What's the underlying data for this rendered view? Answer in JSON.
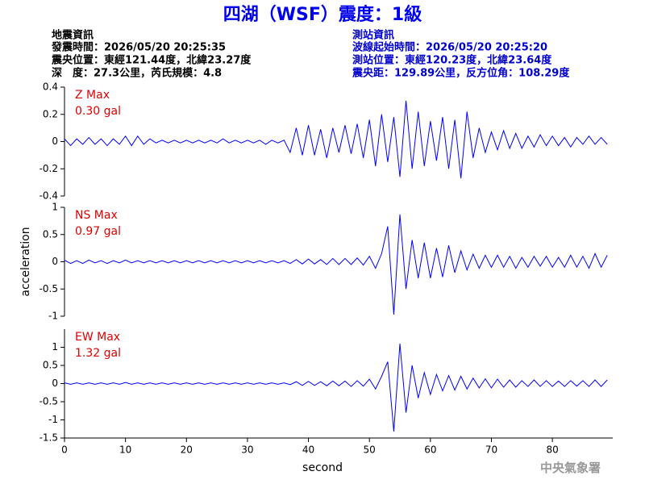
{
  "header": {
    "title": "四湖（WSF）震度：1級",
    "event": [
      "地震資訊",
      "發震時間：2026/05/20 20:25:35",
      "震央位置：東經121.44度，北緯23.27度",
      "深　度：27.3公里，芮氏規模：4.8"
    ],
    "station": [
      "測站資訊",
      "波線起始時間：2026/05/20 20:25:20",
      "測站位置：東經120.23度，北緯23.64度",
      "震央距：129.89公里，反方位角：108.29度"
    ]
  },
  "footer": "中央氣象署",
  "chart_data": [
    {
      "type": "line",
      "color": "#0000ff",
      "annotations": [
        "Z Max",
        "0.30 gal"
      ],
      "xlim": [
        0,
        89.9
      ],
      "ylim": [
        -0.4,
        0.4
      ],
      "yticks": [
        -0.4,
        -0.2,
        0,
        0.2,
        0.4
      ],
      "x": [
        0,
        1,
        2,
        3,
        4,
        5,
        6,
        7,
        8,
        9,
        10,
        11,
        12,
        13,
        14,
        15,
        16,
        17,
        18,
        19,
        20,
        21,
        22,
        23,
        24,
        25,
        26,
        27,
        28,
        29,
        30,
        31,
        32,
        33,
        34,
        35,
        36,
        37,
        38,
        39,
        40,
        41,
        42,
        43,
        44,
        45,
        46,
        47,
        48,
        49,
        50,
        51,
        52,
        53,
        54,
        55,
        56,
        57,
        58,
        59,
        60,
        61,
        62,
        63,
        64,
        65,
        66,
        67,
        68,
        69,
        70,
        71,
        72,
        73,
        74,
        75,
        76,
        77,
        78,
        79,
        80,
        81,
        82,
        83,
        84,
        85,
        86,
        87,
        88,
        89
      ],
      "values": [
        0.02,
        -0.03,
        0.02,
        -0.02,
        0.03,
        -0.02,
        0.02,
        -0.03,
        0.02,
        -0.02,
        0.04,
        -0.03,
        0.04,
        -0.02,
        0.02,
        -0.01,
        0.01,
        -0.01,
        0.01,
        -0.01,
        0.01,
        -0.01,
        0.01,
        -0.01,
        0.01,
        -0.01,
        0.02,
        -0.01,
        0.01,
        -0.01,
        0.01,
        -0.01,
        0.01,
        -0.02,
        0.01,
        -0.01,
        0.01,
        -0.08,
        0.1,
        -0.1,
        0.12,
        -0.1,
        0.09,
        -0.12,
        0.1,
        -0.08,
        0.12,
        -0.09,
        0.13,
        -0.12,
        0.16,
        -0.18,
        0.2,
        -0.15,
        0.18,
        -0.26,
        0.3,
        -0.2,
        0.22,
        -0.18,
        0.15,
        -0.14,
        0.18,
        -0.2,
        0.16,
        -0.27,
        0.22,
        -0.12,
        0.1,
        -0.08,
        0.07,
        -0.06,
        0.08,
        -0.05,
        0.06,
        -0.05,
        0.04,
        -0.04,
        0.05,
        -0.03,
        0.04,
        -0.03,
        0.03,
        -0.04,
        0.03,
        -0.02,
        0.04,
        -0.02,
        0.03,
        -0.02
      ]
    },
    {
      "type": "line",
      "color": "#0000ff",
      "annotations": [
        "NS Max",
        "0.97 gal"
      ],
      "y_label": "acceleration",
      "xlim": [
        0,
        89.9
      ],
      "ylim": [
        -1,
        1
      ],
      "yticks": [
        -1,
        -0.5,
        0,
        0.5,
        1
      ],
      "x": [
        0,
        1,
        2,
        3,
        4,
        5,
        6,
        7,
        8,
        9,
        10,
        11,
        12,
        13,
        14,
        15,
        16,
        17,
        18,
        19,
        20,
        21,
        22,
        23,
        24,
        25,
        26,
        27,
        28,
        29,
        30,
        31,
        32,
        33,
        34,
        35,
        36,
        37,
        38,
        39,
        40,
        41,
        42,
        43,
        44,
        45,
        46,
        47,
        48,
        49,
        50,
        51,
        52,
        53,
        54,
        55,
        56,
        57,
        58,
        59,
        60,
        61,
        62,
        63,
        64,
        65,
        66,
        67,
        68,
        69,
        70,
        71,
        72,
        73,
        74,
        75,
        76,
        77,
        78,
        79,
        80,
        81,
        82,
        83,
        84,
        85,
        86,
        87,
        88,
        89
      ],
      "values": [
        0.03,
        -0.03,
        0.02,
        -0.03,
        0.03,
        -0.02,
        0.02,
        -0.03,
        0.02,
        -0.02,
        0.03,
        -0.02,
        0.02,
        -0.02,
        0.02,
        -0.02,
        0.02,
        -0.02,
        0.02,
        -0.02,
        0.02,
        -0.02,
        0.02,
        -0.02,
        0.02,
        -0.02,
        0.02,
        -0.02,
        0.02,
        -0.02,
        0.02,
        -0.02,
        0.02,
        -0.02,
        0.02,
        -0.02,
        0.02,
        -0.03,
        0.04,
        -0.04,
        0.05,
        -0.04,
        0.04,
        -0.05,
        0.06,
        -0.05,
        0.06,
        -0.05,
        0.07,
        -0.06,
        0.1,
        -0.12,
        0.15,
        0.65,
        -0.97,
        0.87,
        -0.5,
        0.4,
        -0.3,
        0.35,
        -0.3,
        0.25,
        -0.28,
        0.3,
        -0.2,
        0.2,
        -0.15,
        0.14,
        -0.12,
        0.12,
        -0.1,
        0.12,
        -0.1,
        0.1,
        -0.12,
        0.08,
        -0.1,
        0.1,
        -0.08,
        0.1,
        -0.1,
        0.08,
        -0.1,
        0.12,
        -0.1,
        0.1,
        -0.12,
        0.15,
        -0.1,
        0.12
      ]
    },
    {
      "type": "line",
      "color": "#0000ff",
      "annotations": [
        "EW Max",
        "1.32 gal"
      ],
      "x_label": "second",
      "xlim": [
        0,
        89.9
      ],
      "xticks": [
        0,
        10,
        20,
        30,
        40,
        50,
        60,
        70,
        80
      ],
      "ylim": [
        -1.5,
        1.5
      ],
      "yticks": [
        -1.5,
        -1,
        -0.5,
        0,
        0.5,
        1
      ],
      "x": [
        0,
        1,
        2,
        3,
        4,
        5,
        6,
        7,
        8,
        9,
        10,
        11,
        12,
        13,
        14,
        15,
        16,
        17,
        18,
        19,
        20,
        21,
        22,
        23,
        24,
        25,
        26,
        27,
        28,
        29,
        30,
        31,
        32,
        33,
        34,
        35,
        36,
        37,
        38,
        39,
        40,
        41,
        42,
        43,
        44,
        45,
        46,
        47,
        48,
        49,
        50,
        51,
        52,
        53,
        54,
        55,
        56,
        57,
        58,
        59,
        60,
        61,
        62,
        63,
        64,
        65,
        66,
        67,
        68,
        69,
        70,
        71,
        72,
        73,
        74,
        75,
        76,
        77,
        78,
        79,
        80,
        81,
        82,
        83,
        84,
        85,
        86,
        87,
        88,
        89
      ],
      "values": [
        0.02,
        -0.02,
        0.02,
        -0.02,
        0.02,
        -0.02,
        0.02,
        -0.02,
        0.02,
        -0.02,
        0.03,
        -0.02,
        0.02,
        -0.02,
        0.02,
        -0.02,
        0.02,
        -0.02,
        0.02,
        -0.02,
        0.02,
        -0.02,
        0.02,
        -0.02,
        0.02,
        -0.02,
        0.02,
        -0.02,
        0.02,
        -0.02,
        0.02,
        -0.02,
        0.02,
        -0.02,
        0.02,
        -0.02,
        0.02,
        -0.03,
        0.05,
        -0.05,
        0.06,
        -0.05,
        0.05,
        -0.06,
        0.07,
        -0.06,
        0.07,
        -0.08,
        0.08,
        -0.07,
        0.12,
        -0.15,
        0.2,
        0.6,
        -1.32,
        1.1,
        -0.8,
        0.5,
        -0.4,
        0.3,
        -0.3,
        0.25,
        -0.2,
        0.22,
        -0.18,
        0.2,
        -0.15,
        0.15,
        -0.12,
        0.13,
        -0.12,
        0.12,
        -0.1,
        0.1,
        -0.1,
        0.08,
        -0.08,
        0.1,
        -0.08,
        0.08,
        -0.08,
        0.07,
        -0.08,
        0.08,
        -0.07,
        0.08,
        -0.08,
        0.1,
        -0.08,
        0.1
      ]
    }
  ]
}
